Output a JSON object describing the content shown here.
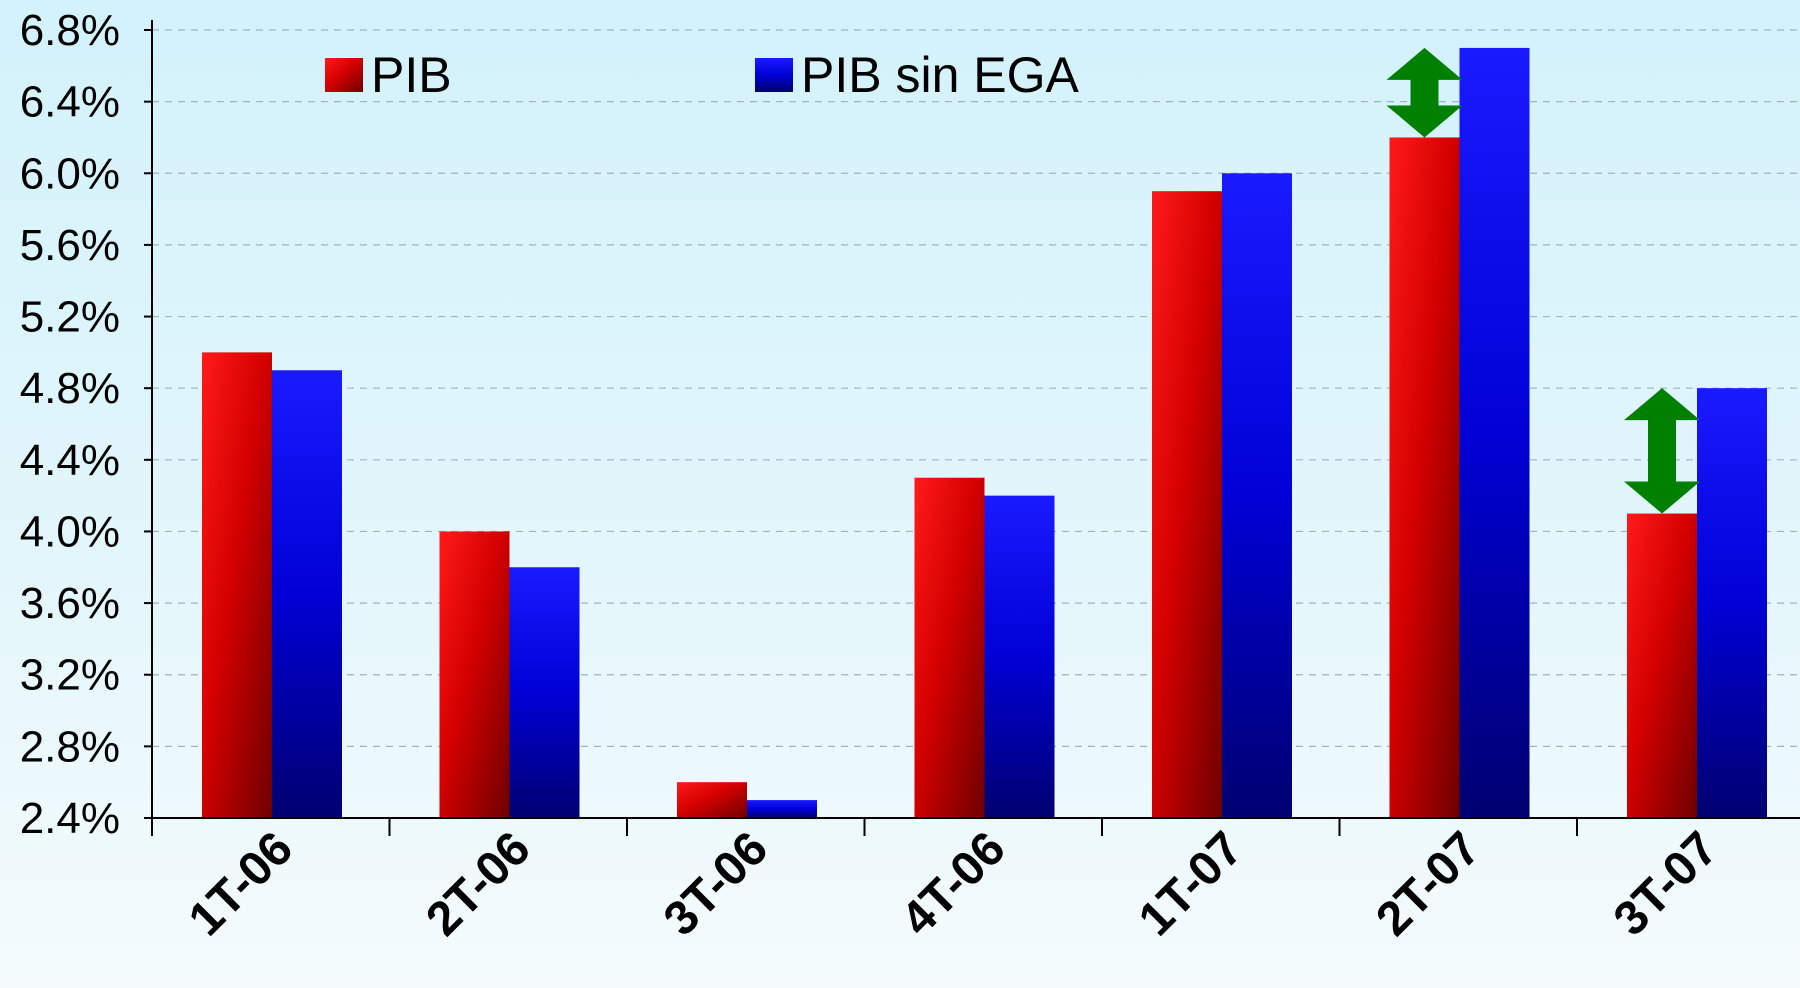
{
  "chart_data": {
    "type": "bar",
    "categories": [
      "1T-06",
      "2T-06",
      "3T-06",
      "4T-06",
      "1T-07",
      "2T-07",
      "3T-07"
    ],
    "series": [
      {
        "name": "PIB",
        "values": [
          5.0,
          4.0,
          2.6,
          4.3,
          5.9,
          6.2,
          4.1
        ],
        "color": "#e60000"
      },
      {
        "name": "PIB sin EGA",
        "values": [
          4.9,
          3.8,
          2.5,
          4.2,
          6.0,
          6.7,
          4.8
        ],
        "color": "#0000e6"
      }
    ],
    "yticks": [
      "2.4%",
      "2.8%",
      "3.2%",
      "3.6%",
      "4.0%",
      "4.4%",
      "4.8%",
      "5.2%",
      "5.6%",
      "6.0%",
      "6.4%",
      "6.8%"
    ],
    "ylim": [
      2.4,
      6.8
    ],
    "grid": true,
    "legend_position": "top",
    "annotations": [
      {
        "type": "double-arrow",
        "category": "2T-07",
        "color": "#008000"
      },
      {
        "type": "double-arrow",
        "category": "3T-07",
        "color": "#008000"
      }
    ]
  }
}
